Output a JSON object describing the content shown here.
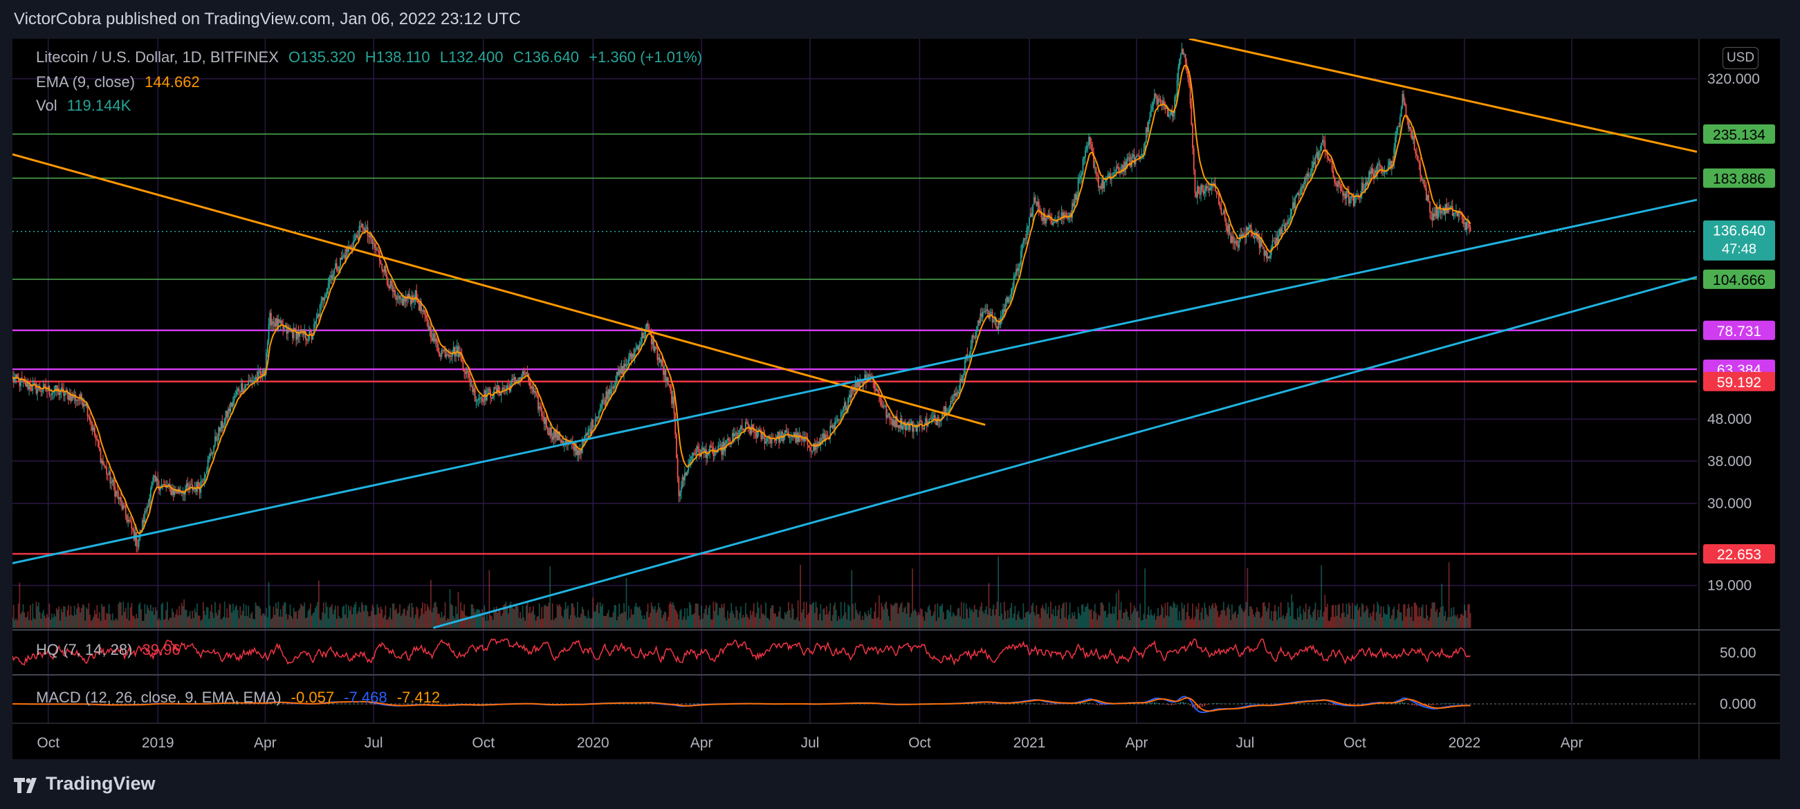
{
  "header": {
    "publisher_line": "VictorCobra published on TradingView.com, Jan 06, 2022 23:12 UTC"
  },
  "legend": {
    "symbol": "Litecoin / U.S. Dollar, 1D, BITFINEX",
    "open": "O135.320",
    "high": "H138.110",
    "low": "L132.400",
    "close": "C136.640",
    "change": "+1.360 (+1.01%)",
    "ema_label": "EMA (9, close)",
    "ema_value": "144.662",
    "vol_label": "Vol",
    "vol_value": "119.144K",
    "hq_label": "HQ (7, 14, 28)",
    "hq_value": "39.96",
    "macd_label": "MACD (12, 26, close, 9, EMA, EMA)",
    "macd_hist": "-0.057",
    "macd_line": "-7.468",
    "macd_signal": "-7.412"
  },
  "currency_button": "USD",
  "footer": {
    "brand": "TradingView"
  },
  "colors": {
    "up": "#26a69a",
    "down": "#ef5350",
    "ema": "#ff9800",
    "trend_orange": "#ff9800",
    "trend_blue": "#1fb3e0",
    "level_green": "#4caf50",
    "level_magenta": "#d03cf0",
    "level_red": "#f23645",
    "grid": "#2b1845"
  },
  "chart_data": {
    "type": "candlestick",
    "symbol": "Litecoin / U.S. Dollar",
    "interval": "1D",
    "exchange": "BITFINEX",
    "price_scale": "log",
    "ylim": [
      15,
      400
    ],
    "xlim": [
      "2018-09-01",
      "2022-07-15"
    ],
    "x_ticks": [
      {
        "date": "2018-10-01",
        "label": "Oct"
      },
      {
        "date": "2019-01-01",
        "label": "2019"
      },
      {
        "date": "2019-04-01",
        "label": "Apr"
      },
      {
        "date": "2019-07-01",
        "label": "Jul"
      },
      {
        "date": "2019-10-01",
        "label": "Oct"
      },
      {
        "date": "2020-01-01",
        "label": "2020"
      },
      {
        "date": "2020-04-01",
        "label": "Apr"
      },
      {
        "date": "2020-07-01",
        "label": "Jul"
      },
      {
        "date": "2020-10-01",
        "label": "Oct"
      },
      {
        "date": "2021-01-01",
        "label": "2021"
      },
      {
        "date": "2021-04-01",
        "label": "Apr"
      },
      {
        "date": "2021-07-01",
        "label": "Jul"
      },
      {
        "date": "2021-10-01",
        "label": "Oct"
      },
      {
        "date": "2022-01-01",
        "label": "2022"
      },
      {
        "date": "2022-04-01",
        "label": "Apr"
      }
    ],
    "y_ticks": [
      {
        "value": 320,
        "label": "320.000"
      },
      {
        "value": 48,
        "label": "48.000"
      },
      {
        "value": 38,
        "label": "38.000"
      },
      {
        "value": 30,
        "label": "30.000"
      },
      {
        "value": 19,
        "label": "19.000"
      }
    ],
    "price_path": [
      [
        "2018-09-01",
        60
      ],
      [
        "2018-09-20",
        57
      ],
      [
        "2018-10-10",
        56
      ],
      [
        "2018-11-01",
        53
      ],
      [
        "2018-11-15",
        38
      ],
      [
        "2018-12-01",
        30
      ],
      [
        "2018-12-15",
        24
      ],
      [
        "2018-12-28",
        34
      ],
      [
        "2019-01-15",
        32
      ],
      [
        "2019-02-05",
        33
      ],
      [
        "2019-02-20",
        44
      ],
      [
        "2019-03-10",
        57
      ],
      [
        "2019-03-31",
        62
      ],
      [
        "2019-04-05",
        84
      ],
      [
        "2019-04-20",
        78
      ],
      [
        "2019-05-10",
        76
      ],
      [
        "2019-05-25",
        106
      ],
      [
        "2019-06-15",
        130
      ],
      [
        "2019-06-22",
        141
      ],
      [
        "2019-07-05",
        120
      ],
      [
        "2019-07-20",
        92
      ],
      [
        "2019-08-05",
        95
      ],
      [
        "2019-08-25",
        70
      ],
      [
        "2019-09-10",
        70
      ],
      [
        "2019-09-25",
        54
      ],
      [
        "2019-10-20",
        57
      ],
      [
        "2019-11-05",
        62
      ],
      [
        "2019-11-25",
        45
      ],
      [
        "2019-12-20",
        40
      ],
      [
        "2020-01-15",
        57
      ],
      [
        "2020-02-05",
        70
      ],
      [
        "2020-02-15",
        80
      ],
      [
        "2020-02-28",
        64
      ],
      [
        "2020-03-08",
        53
      ],
      [
        "2020-03-13",
        32
      ],
      [
        "2020-03-25",
        40
      ],
      [
        "2020-04-15",
        40
      ],
      [
        "2020-05-08",
        46
      ],
      [
        "2020-05-25",
        43
      ],
      [
        "2020-06-15",
        44
      ],
      [
        "2020-07-05",
        41
      ],
      [
        "2020-07-25",
        47
      ],
      [
        "2020-08-05",
        57
      ],
      [
        "2020-08-20",
        62
      ],
      [
        "2020-09-05",
        48
      ],
      [
        "2020-09-25",
        46
      ],
      [
        "2020-10-15",
        48
      ],
      [
        "2020-11-01",
        55
      ],
      [
        "2020-11-12",
        72
      ],
      [
        "2020-11-25",
        90
      ],
      [
        "2020-12-05",
        80
      ],
      [
        "2020-12-20",
        105
      ],
      [
        "2021-01-05",
        162
      ],
      [
        "2021-01-15",
        145
      ],
      [
        "2021-02-05",
        152
      ],
      [
        "2021-02-20",
        225
      ],
      [
        "2021-03-01",
        175
      ],
      [
        "2021-03-20",
        196
      ],
      [
        "2021-04-05",
        210
      ],
      [
        "2021-04-16",
        290
      ],
      [
        "2021-05-01",
        260
      ],
      [
        "2021-05-09",
        385
      ],
      [
        "2021-05-15",
        310
      ],
      [
        "2021-05-20",
        170
      ],
      [
        "2021-06-05",
        175
      ],
      [
        "2021-06-22",
        125
      ],
      [
        "2021-07-05",
        140
      ],
      [
        "2021-07-20",
        120
      ],
      [
        "2021-08-05",
        145
      ],
      [
        "2021-08-20",
        180
      ],
      [
        "2021-09-05",
        225
      ],
      [
        "2021-09-15",
        178
      ],
      [
        "2021-09-30",
        160
      ],
      [
        "2021-10-15",
        190
      ],
      [
        "2021-11-01",
        200
      ],
      [
        "2021-11-10",
        285
      ],
      [
        "2021-11-20",
        220
      ],
      [
        "2021-12-04",
        150
      ],
      [
        "2021-12-15",
        155
      ],
      [
        "2021-12-28",
        150
      ],
      [
        "2022-01-06",
        136.64
      ]
    ],
    "ema": {
      "period": 9,
      "last": 144.662
    },
    "horizontal_levels": [
      {
        "value": 235.134,
        "label": "235.134",
        "color": "green"
      },
      {
        "value": 183.886,
        "label": "183.886",
        "color": "green"
      },
      {
        "value": 104.666,
        "label": "104.666",
        "color": "green"
      },
      {
        "value": 78.731,
        "label": "78.731",
        "color": "magenta"
      },
      {
        "value": 63.384,
        "label": "63.384",
        "color": "magenta"
      },
      {
        "value": 59.192,
        "label": "59.192",
        "color": "red"
      },
      {
        "value": 22.653,
        "label": "22.653",
        "color": "red"
      }
    ],
    "last_price": {
      "value": 136.64,
      "label": "136.640",
      "countdown": "47:48"
    },
    "trendlines": [
      {
        "color": "orange",
        "from": [
          "2018-09-01",
          210
        ],
        "to": [
          "2020-11-25",
          46.5
        ]
      },
      {
        "color": "orange",
        "from": [
          "2021-05-15",
          400
        ],
        "to": [
          "2022-07-15",
          213
        ]
      },
      {
        "color": "blue",
        "from": [
          "2018-09-01",
          21.5
        ],
        "to": [
          "2022-07-15",
          163
        ]
      },
      {
        "color": "blue",
        "from": [
          "2019-08-20",
          15
        ],
        "to": [
          "2022-07-15",
          106
        ]
      }
    ],
    "volume": {
      "last": "119.144K"
    },
    "hq": {
      "params": [
        7,
        14,
        28
      ],
      "value": 39.96,
      "axis_tick": "50.00"
    },
    "macd": {
      "params": [
        12,
        26,
        9
      ],
      "histogram": -0.057,
      "macd": -7.468,
      "signal": -7.412,
      "axis_tick": "0.000"
    }
  }
}
